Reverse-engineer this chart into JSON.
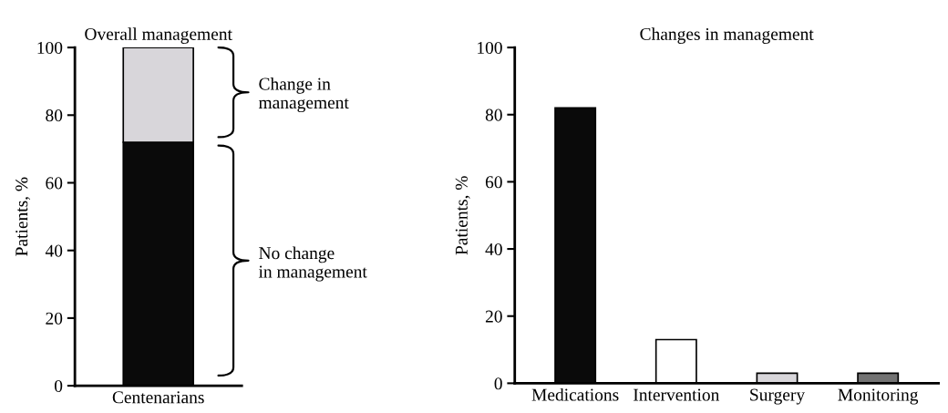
{
  "chart_data": [
    {
      "type": "bar",
      "title": "Overall management",
      "ylabel": "Patients, %",
      "categories": [
        "Centenarians"
      ],
      "stacked": true,
      "series": [
        {
          "color": "#0a0a0a",
          "values": [
            72
          ]
        },
        {
          "color": "#d8d6da",
          "values": [
            28
          ]
        }
      ],
      "ylim": [
        0,
        100
      ],
      "yticks": [
        0,
        20,
        40,
        60,
        80,
        100
      ],
      "grid": false,
      "legend": false,
      "annotations": [
        "No change\nin management",
        "Change in\nmanagement"
      ]
    },
    {
      "type": "bar",
      "title": "Changes in management",
      "ylabel": "Patients, %",
      "categories": [
        "Medications",
        "Intervention",
        "Surgery",
        "Monitoring"
      ],
      "values": [
        82,
        13,
        3,
        3
      ],
      "colors": [
        "#0a0a0a",
        "#ffffff",
        "#d8d6da",
        "#737373"
      ],
      "ylim": [
        0,
        100
      ],
      "yticks": [
        0,
        20,
        40,
        60,
        80,
        100
      ],
      "grid": false,
      "legend": false
    }
  ]
}
